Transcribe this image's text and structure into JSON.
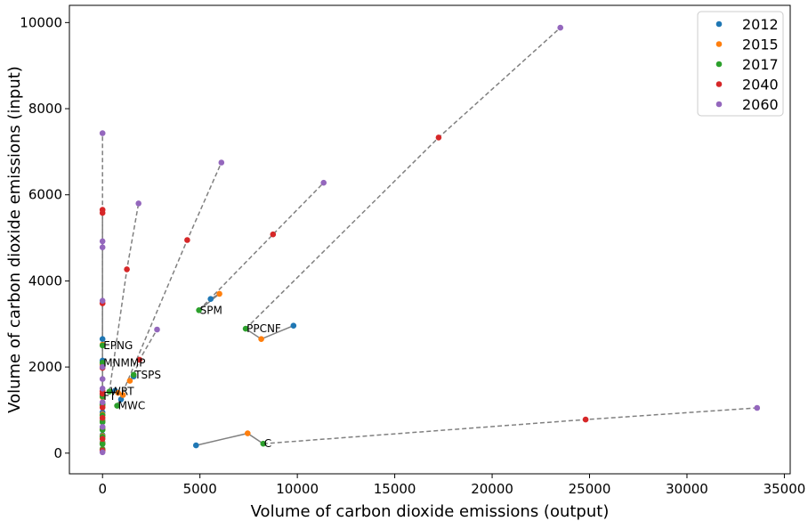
{
  "chart_data": {
    "type": "scatter",
    "xlabel": "Volume of carbon dioxide emissions (output)",
    "ylabel": "Volume of carbon dioxide emissions (input)",
    "xlim": [
      -1700,
      35300
    ],
    "ylim": [
      -480,
      10400
    ],
    "xticks": [
      0,
      5000,
      10000,
      15000,
      20000,
      25000,
      30000,
      35000
    ],
    "yticks": [
      0,
      2000,
      4000,
      6000,
      8000,
      10000
    ],
    "grid": false,
    "legend_position": "top-right",
    "series": [
      {
        "name": "2012",
        "color": "#1f77b4"
      },
      {
        "name": "2015",
        "color": "#ff7f0e"
      },
      {
        "name": "2017",
        "color": "#2ca02c"
      },
      {
        "name": "2040",
        "color": "#d62728"
      },
      {
        "name": "2060",
        "color": "#9467bd"
      }
    ],
    "groups": [
      {
        "label": "SPM",
        "points": [
          [
            5550,
            3580
          ],
          [
            6000,
            3700
          ],
          [
            4950,
            3320
          ],
          [
            8750,
            5080
          ],
          [
            11350,
            6280
          ]
        ]
      },
      {
        "label": "PPCNF",
        "points": [
          [
            9800,
            2960
          ],
          [
            8150,
            2650
          ],
          [
            7350,
            2890
          ],
          [
            17250,
            7330
          ],
          [
            23500,
            9880
          ]
        ]
      },
      {
        "label": "C",
        "points": [
          [
            4800,
            180
          ],
          [
            7450,
            460
          ],
          [
            8250,
            220
          ],
          [
            24800,
            780
          ],
          [
            33600,
            1050
          ]
        ]
      },
      {
        "label": "TSPS",
        "points": [
          [
            1600,
            1780
          ],
          [
            1400,
            1680
          ],
          [
            1600,
            1820
          ],
          [
            1900,
            2170
          ],
          [
            2800,
            2870
          ]
        ]
      },
      {
        "label": "MWC",
        "points": [
          [
            950,
            1250
          ],
          [
            1050,
            1350
          ],
          [
            750,
            1100
          ],
          [
            4350,
            4950
          ],
          [
            6100,
            6750
          ]
        ]
      },
      {
        "label": "WRT",
        "points": [
          [
            650,
            1450
          ],
          [
            800,
            1400
          ],
          [
            350,
            1430
          ],
          [
            1250,
            4270
          ],
          [
            1850,
            5800
          ]
        ]
      },
      {
        "label": "MNMMP",
        "points": [
          [
            0,
            2150
          ],
          [
            0,
            2050
          ],
          [
            0,
            2100
          ],
          [
            0,
            1980
          ],
          [
            0,
            2000
          ]
        ]
      },
      {
        "label": "EPNG",
        "points": [
          [
            0,
            2650
          ],
          [
            0,
            2520
          ],
          [
            0,
            2500
          ],
          [
            0,
            3480
          ],
          [
            0,
            3540
          ]
        ]
      },
      {
        "label": "FT",
        "points": [
          [
            0,
            1350
          ],
          [
            0,
            1300
          ],
          [
            0,
            1320
          ],
          [
            0,
            1440
          ],
          [
            0,
            1500
          ]
        ]
      },
      {
        "label": "",
        "points": [
          [
            0,
            1150
          ],
          [
            0,
            1100
          ],
          [
            0,
            1130
          ],
          [
            0,
            5650
          ],
          [
            0,
            7430
          ]
        ]
      },
      {
        "label": "",
        "points": [
          [
            0,
            950
          ],
          [
            0,
            900
          ],
          [
            0,
            880
          ],
          [
            0,
            5580
          ],
          [
            0,
            4920
          ]
        ]
      },
      {
        "label": "",
        "points": [
          [
            0,
            760
          ],
          [
            0,
            740
          ],
          [
            0,
            720
          ],
          [
            0,
            1380
          ],
          [
            0,
            4780
          ]
        ]
      },
      {
        "label": "",
        "points": [
          [
            0,
            600
          ],
          [
            0,
            560
          ],
          [
            0,
            540
          ],
          [
            0,
            1060
          ],
          [
            0,
            1720
          ]
        ]
      },
      {
        "label": "",
        "points": [
          [
            0,
            420
          ],
          [
            0,
            400
          ],
          [
            0,
            380
          ],
          [
            0,
            820
          ],
          [
            0,
            1180
          ]
        ]
      },
      {
        "label": "",
        "points": [
          [
            0,
            250
          ],
          [
            0,
            230
          ],
          [
            0,
            210
          ],
          [
            0,
            330
          ],
          [
            0,
            610
          ]
        ]
      },
      {
        "label": "",
        "points": [
          [
            0,
            100
          ],
          [
            0,
            90
          ],
          [
            0,
            80
          ],
          [
            0,
            60
          ],
          [
            0,
            20
          ]
        ]
      }
    ]
  }
}
